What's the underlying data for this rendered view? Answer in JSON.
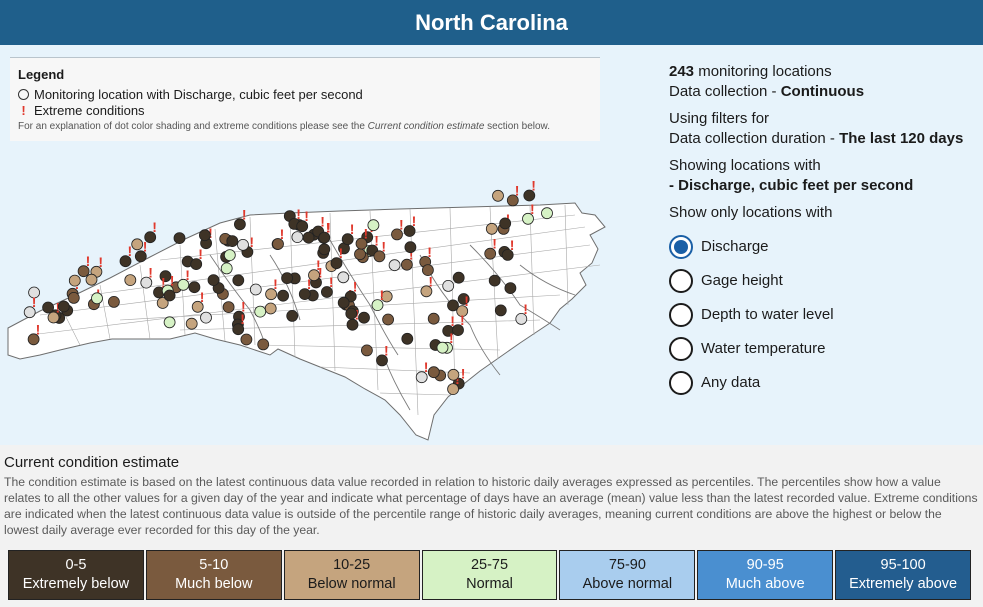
{
  "header": {
    "title": "North Carolina"
  },
  "legend": {
    "title": "Legend",
    "items": [
      {
        "icon": "circle-icon",
        "label": "Monitoring location with Discharge, cubic feet per second"
      },
      {
        "icon": "exclamation-icon",
        "label": "Extreme conditions"
      }
    ],
    "note_prefix": "For an explanation of dot color shading and extreme conditions please see the ",
    "note_link": "Current condition estimate",
    "note_suffix": " section below."
  },
  "info": {
    "count": "243",
    "count_label": " monitoring locations",
    "collection_label": "Data collection - ",
    "collection_value": "Continuous",
    "filters_label": "Using filters for",
    "duration_label": "Data collection duration - ",
    "duration_value": "The last 120 days",
    "showing_label": "Showing locations with",
    "showing_value": "- Discharge, cubic feet per second",
    "only_label": "Show only locations with"
  },
  "filters": {
    "selected": "Discharge",
    "options": [
      "Discharge",
      "Gage height",
      "Depth to water level",
      "Water temperature",
      "Any data"
    ]
  },
  "condition": {
    "title": "Current condition estimate",
    "text": "The condition estimate is based on the latest continuous data value recorded in relation to historic daily averages expressed as percentiles. The percentiles show how a value relates to all the other values for a given day of the year and indicate what percentage of days have an average (mean) value less than the latest recorded value. Extreme conditions are indicated when the latest continuous data value is outside of the percentile range of historic daily averages, meaning current conditions are above the highest or below the lowest daily average ever recorded for this day of the year."
  },
  "scale": [
    {
      "range": "0-5",
      "label": "Extremely below",
      "color": "#3e3326",
      "text_color": "#ffffff"
    },
    {
      "range": "5-10",
      "label": "Much below",
      "color": "#7a5a3e",
      "text_color": "#ffffff"
    },
    {
      "range": "10-25",
      "label": "Below normal",
      "color": "#c5a47e",
      "text_color": "#1b1b1b"
    },
    {
      "range": "25-75",
      "label": "Normal",
      "color": "#d6f2c5",
      "text_color": "#1b1b1b"
    },
    {
      "range": "75-90",
      "label": "Above normal",
      "color": "#a9cdee",
      "text_color": "#1b1b1b"
    },
    {
      "range": "90-95",
      "label": "Much above",
      "color": "#4a8fd0",
      "text_color": "#ffffff"
    },
    {
      "range": "95-100",
      "label": "Extremely above",
      "color": "#235d8f",
      "text_color": "#ffffff"
    }
  ]
}
